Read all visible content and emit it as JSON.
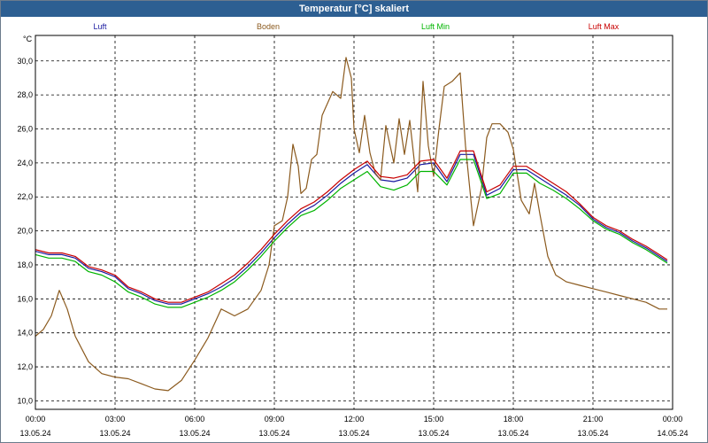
{
  "window_title": "Temperatur [°C] skaliert",
  "chart_data": {
    "type": "line",
    "title": "Temperatur [°C] skaliert",
    "ylabel": "°C",
    "xlabel": "",
    "ylim": [
      9.5,
      31.5
    ],
    "xlim": [
      0,
      24
    ],
    "grid": true,
    "y_ticks": [
      "10,0",
      "12,0",
      "14,0",
      "16,0",
      "18,0",
      "20,0",
      "22,0",
      "24,0",
      "26,0",
      "28,0",
      "30,0"
    ],
    "x_ticks": [
      {
        "time": "00:00",
        "date": "13.05.24"
      },
      {
        "time": "03:00",
        "date": "13.05.24"
      },
      {
        "time": "06:00",
        "date": "13.05.24"
      },
      {
        "time": "09:00",
        "date": "13.05.24"
      },
      {
        "time": "12:00",
        "date": "13.05.24"
      },
      {
        "time": "15:00",
        "date": "13.05.24"
      },
      {
        "time": "18:00",
        "date": "13.05.24"
      },
      {
        "time": "21:00",
        "date": "13.05.24"
      },
      {
        "time": "00:00",
        "date": "14.05.24"
      }
    ],
    "series": [
      {
        "name": "Luft",
        "color": "#1a1aa0",
        "x": [
          0,
          0.5,
          1,
          1.5,
          2,
          2.5,
          3,
          3.5,
          4,
          4.5,
          5,
          5.5,
          6,
          6.5,
          7,
          7.5,
          8,
          8.5,
          9,
          9.5,
          10,
          10.5,
          11,
          11.5,
          12,
          12.5,
          13,
          13.5,
          14,
          14.5,
          15,
          15.5,
          16,
          16.5,
          17,
          17.5,
          18,
          18.5,
          19,
          19.5,
          20,
          20.5,
          21,
          21.5,
          22,
          22.5,
          23,
          23.5,
          23.8
        ],
        "y": [
          18.8,
          18.6,
          18.6,
          18.4,
          17.8,
          17.6,
          17.3,
          16.6,
          16.3,
          15.9,
          15.7,
          15.7,
          16.0,
          16.3,
          16.7,
          17.2,
          17.9,
          18.7,
          19.6,
          20.4,
          21.1,
          21.5,
          22.1,
          22.8,
          23.4,
          23.9,
          23.0,
          22.9,
          23.1,
          23.9,
          24.0,
          22.9,
          24.5,
          24.5,
          22.1,
          22.5,
          23.6,
          23.6,
          23.1,
          22.6,
          22.1,
          21.5,
          20.7,
          20.2,
          19.9,
          19.4,
          19.0,
          18.5,
          18.2
        ]
      },
      {
        "name": "Boden",
        "color": "#8b5a1e",
        "x": [
          0,
          0.3,
          0.6,
          0.9,
          1.2,
          1.5,
          2,
          2.5,
          3,
          3.5,
          4,
          4.5,
          5,
          5.5,
          6,
          6.5,
          7,
          7.5,
          8,
          8.5,
          8.8,
          9,
          9.3,
          9.5,
          9.7,
          9.9,
          10,
          10.2,
          10.4,
          10.6,
          10.8,
          11,
          11.2,
          11.5,
          11.7,
          11.9,
          12,
          12.2,
          12.4,
          12.6,
          12.8,
          13,
          13.2,
          13.5,
          13.7,
          13.9,
          14.1,
          14.4,
          14.6,
          14.8,
          15,
          15.2,
          15.4,
          15.7,
          16,
          16.2,
          16.5,
          16.8,
          17,
          17.2,
          17.5,
          17.8,
          18,
          18.3,
          18.6,
          18.8,
          19,
          19.3,
          19.6,
          19.8,
          20,
          20.5,
          21,
          21.5,
          22,
          22.5,
          23,
          23.5,
          23.8
        ],
        "y": [
          13.8,
          14.2,
          15.0,
          16.5,
          15.4,
          13.8,
          12.3,
          11.6,
          11.4,
          11.3,
          11.0,
          10.7,
          10.6,
          11.2,
          12.4,
          13.7,
          15.4,
          15.0,
          15.4,
          16.5,
          18.0,
          20.3,
          20.6,
          22.0,
          25.1,
          23.8,
          22.2,
          22.5,
          24.2,
          24.5,
          26.8,
          27.5,
          28.2,
          27.8,
          30.2,
          29.0,
          26.0,
          24.6,
          26.8,
          24.6,
          23.4,
          23.0,
          26.2,
          24.0,
          26.6,
          24.5,
          26.5,
          22.3,
          28.8,
          25.0,
          23.2,
          26.0,
          28.5,
          28.8,
          29.3,
          25.0,
          20.3,
          22.5,
          25.5,
          26.3,
          26.3,
          25.8,
          24.8,
          21.8,
          21.0,
          22.8,
          21.0,
          18.5,
          17.4,
          17.2,
          17.0,
          16.8,
          16.6,
          16.4,
          16.2,
          16.0,
          15.8,
          15.4,
          15.4
        ]
      },
      {
        "name": "Luft Min",
        "color": "#00b400",
        "x": [
          0,
          0.5,
          1,
          1.5,
          2,
          2.5,
          3,
          3.5,
          4,
          4.5,
          5,
          5.5,
          6,
          6.5,
          7,
          7.5,
          8,
          8.5,
          9,
          9.5,
          10,
          10.5,
          11,
          11.5,
          12,
          12.5,
          13,
          13.5,
          14,
          14.5,
          15,
          15.5,
          16,
          16.5,
          17,
          17.5,
          18,
          18.5,
          19,
          19.5,
          20,
          20.5,
          21,
          21.5,
          22,
          22.5,
          23,
          23.5,
          23.8
        ],
        "y": [
          18.6,
          18.4,
          18.4,
          18.2,
          17.6,
          17.4,
          17.0,
          16.4,
          16.1,
          15.7,
          15.5,
          15.5,
          15.8,
          16.1,
          16.5,
          17.0,
          17.7,
          18.5,
          19.4,
          20.2,
          20.9,
          21.2,
          21.8,
          22.5,
          23.0,
          23.5,
          22.6,
          22.4,
          22.7,
          23.5,
          23.5,
          22.7,
          24.2,
          24.2,
          21.9,
          22.2,
          23.4,
          23.4,
          22.8,
          22.4,
          21.9,
          21.3,
          20.6,
          20.1,
          19.8,
          19.3,
          18.9,
          18.4,
          18.1
        ]
      },
      {
        "name": "Luft Max",
        "color": "#c80000",
        "x": [
          0,
          0.5,
          1,
          1.5,
          2,
          2.5,
          3,
          3.5,
          4,
          4.5,
          5,
          5.5,
          6,
          6.5,
          7,
          7.5,
          8,
          8.5,
          9,
          9.5,
          10,
          10.5,
          11,
          11.5,
          12,
          12.5,
          13,
          13.5,
          14,
          14.5,
          15,
          15.5,
          16,
          16.5,
          17,
          17.5,
          18,
          18.5,
          19,
          19.5,
          20,
          20.5,
          21,
          21.5,
          22,
          22.5,
          23,
          23.5,
          23.8
        ],
        "y": [
          18.9,
          18.7,
          18.7,
          18.5,
          17.9,
          17.7,
          17.4,
          16.7,
          16.4,
          16.0,
          15.8,
          15.8,
          16.1,
          16.4,
          16.9,
          17.4,
          18.1,
          18.9,
          19.8,
          20.6,
          21.3,
          21.7,
          22.3,
          23.0,
          23.6,
          24.1,
          23.2,
          23.1,
          23.3,
          24.1,
          24.2,
          23.1,
          24.7,
          24.7,
          22.3,
          22.7,
          23.8,
          23.8,
          23.3,
          22.8,
          22.3,
          21.6,
          20.8,
          20.3,
          20.0,
          19.5,
          19.1,
          18.6,
          18.3
        ]
      }
    ]
  }
}
